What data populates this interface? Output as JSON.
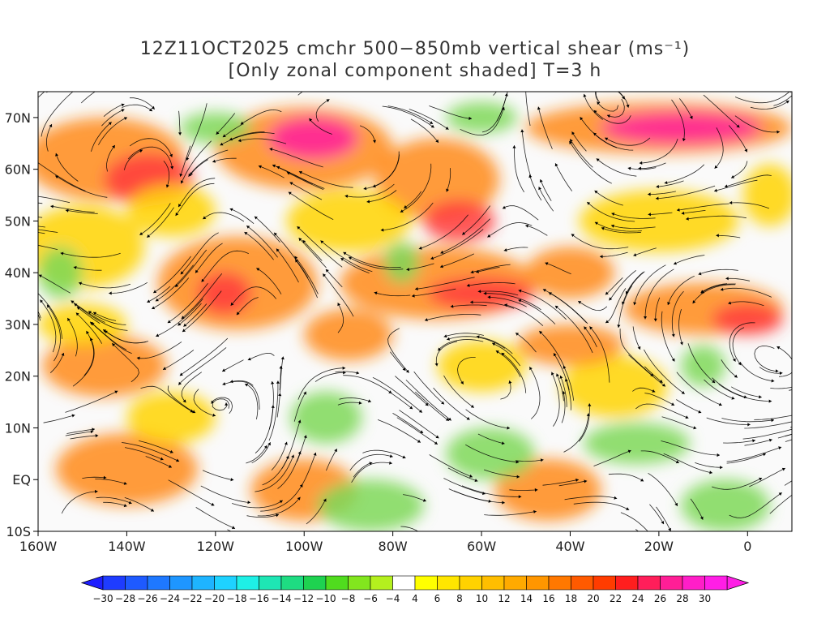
{
  "title_line1": "12Z11OCT2025 cmchr 500−850mb vertical shear (ms⁻¹)",
  "title_line2": "[Only zonal component shaded] T=3 h",
  "lat_labels": [
    "70N",
    "60N",
    "50N",
    "40N",
    "30N",
    "20N",
    "10N",
    "EQ",
    "10S"
  ],
  "lon_labels": [
    "160W",
    "140W",
    "120W",
    "100W",
    "80W",
    "60W",
    "40W",
    "20W",
    "0"
  ],
  "map": {
    "lon_range": [
      -160,
      10
    ],
    "lat_range": [
      -10,
      75
    ],
    "lat_ticks": [
      70,
      60,
      50,
      40,
      30,
      20,
      10,
      0,
      -10
    ],
    "lon_ticks": [
      -160,
      -140,
      -120,
      -100,
      -80,
      -60,
      -40,
      -20,
      0
    ]
  },
  "colorbar": {
    "labels": [
      "−30",
      "−28",
      "−26",
      "−24",
      "−22",
      "−20",
      "−18",
      "−16",
      "−14",
      "−12",
      "−10",
      "−8",
      "−6",
      "−4",
      "4",
      "6",
      "8",
      "10",
      "12",
      "14",
      "16",
      "18",
      "20",
      "22",
      "24",
      "26",
      "28",
      "30"
    ],
    "colors": [
      "#1e3cff",
      "#1e5aff",
      "#1e78ff",
      "#1e96ff",
      "#1eb4ff",
      "#1ed2ff",
      "#1ef0e6",
      "#1ee6b4",
      "#1edc82",
      "#1ed250",
      "#50dc1e",
      "#82e61e",
      "#b4f01e",
      "#ffffff",
      "#ffff00",
      "#ffe600",
      "#ffd200",
      "#ffbe00",
      "#ffaa00",
      "#ff9600",
      "#ff7800",
      "#ff5a00",
      "#ff3c00",
      "#ff1e1e",
      "#ff1e5a",
      "#ff1e96",
      "#ff1ec8",
      "#ff1ee6"
    ],
    "arrow_left_color": "#1e1eff",
    "arrow_right_color": "#ff1ee6"
  },
  "colors": {
    "green": "#7ed858",
    "yellow": "#ffd400",
    "orange": "#ff8a1a",
    "red": "#ff3c3c",
    "magenta": "#ff1ea0",
    "streamline": "#000000"
  }
}
